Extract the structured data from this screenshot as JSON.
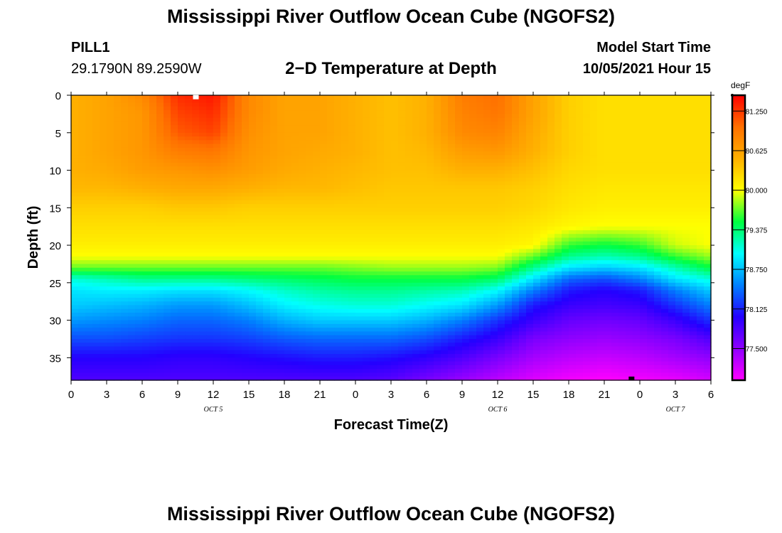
{
  "header": {
    "title": "Mississippi River Outflow Ocean Cube (NGOFS2)",
    "station": "PILL1",
    "coordinates": "29.1790N  89.2590W",
    "plot_title": "2−D Temperature at Depth",
    "model_start_label": "Model Start Time",
    "model_start_value": "10/05/2021 Hour 15"
  },
  "footer": {
    "title": "Mississippi River Outflow Ocean Cube (NGOFS2)"
  },
  "colorbar": {
    "units": "degF",
    "ticks": [
      "81.250",
      "80.625",
      "80.000",
      "79.375",
      "78.750",
      "78.125",
      "77.500"
    ],
    "tick_values": [
      81.25,
      80.625,
      80.0,
      79.375,
      78.75,
      78.125,
      77.5
    ],
    "range": [
      77.0,
      81.5
    ],
    "colors": [
      "#ff00ff",
      "#8f00ff",
      "#2400ff",
      "#0080ff",
      "#00ffff",
      "#00ff40",
      "#ffff00",
      "#ffb000",
      "#ff7000",
      "#ff0000"
    ]
  },
  "chart_data": {
    "type": "heatmap",
    "title": "2−D Temperature at Depth",
    "xlabel": "Forecast Time(Z)",
    "ylabel": "Depth (ft)",
    "x_ticks": [
      "0",
      "3",
      "6",
      "9",
      "12",
      "15",
      "18",
      "21",
      "0",
      "3",
      "6",
      "9",
      "12",
      "15",
      "18",
      "21",
      "0",
      "3",
      "6"
    ],
    "x_range_hours": [
      0,
      54
    ],
    "date_labels": [
      {
        "label": "OCT 5",
        "hour": 12
      },
      {
        "label": "OCT 6",
        "hour": 36
      },
      {
        "label": "OCT 7",
        "hour": 51
      }
    ],
    "y_ticks": [
      "0",
      "5",
      "10",
      "15",
      "20",
      "25",
      "30",
      "35"
    ],
    "y_tick_values": [
      0,
      5,
      10,
      15,
      20,
      25,
      30,
      35
    ],
    "y_range_ft": [
      0,
      38
    ],
    "grid_hours": [
      0,
      3,
      6,
      9,
      12,
      15,
      18,
      21,
      24,
      27,
      30,
      33,
      36,
      39,
      42,
      45,
      48,
      51,
      54
    ],
    "grid_depths": [
      0,
      2.5,
      5,
      7.5,
      10,
      12.5,
      15,
      17.5,
      20,
      21.5,
      23,
      24.5,
      26,
      28,
      30,
      32.5,
      35,
      38
    ],
    "temperature_degF": [
      [
        80.5,
        80.6,
        80.8,
        81.3,
        81.4,
        80.8,
        80.6,
        80.6,
        80.5,
        80.4,
        80.5,
        80.9,
        81.0,
        80.6,
        80.3,
        80.2,
        80.2,
        80.2,
        80.2
      ],
      [
        80.5,
        80.6,
        80.7,
        81.2,
        81.3,
        80.8,
        80.6,
        80.6,
        80.5,
        80.4,
        80.5,
        80.85,
        80.95,
        80.6,
        80.3,
        80.2,
        80.2,
        80.2,
        80.2
      ],
      [
        80.5,
        80.6,
        80.7,
        81.1,
        81.2,
        80.75,
        80.6,
        80.6,
        80.5,
        80.4,
        80.5,
        80.8,
        80.85,
        80.55,
        80.3,
        80.2,
        80.2,
        80.2,
        80.2
      ],
      [
        80.5,
        80.6,
        80.7,
        80.9,
        80.95,
        80.7,
        80.6,
        80.55,
        80.5,
        80.4,
        80.45,
        80.65,
        80.7,
        80.5,
        80.3,
        80.2,
        80.2,
        80.2,
        80.2
      ],
      [
        80.5,
        80.55,
        80.65,
        80.7,
        80.75,
        80.65,
        80.55,
        80.5,
        80.45,
        80.4,
        80.4,
        80.5,
        80.5,
        80.4,
        80.25,
        80.2,
        80.2,
        80.2,
        80.2
      ],
      [
        80.45,
        80.45,
        80.5,
        80.55,
        80.55,
        80.5,
        80.45,
        80.45,
        80.4,
        80.35,
        80.35,
        80.35,
        80.35,
        80.3,
        80.2,
        80.15,
        80.15,
        80.15,
        80.15
      ],
      [
        80.3,
        80.3,
        80.3,
        80.35,
        80.35,
        80.3,
        80.3,
        80.3,
        80.3,
        80.3,
        80.3,
        80.3,
        80.3,
        80.25,
        80.15,
        80.1,
        80.1,
        80.1,
        80.1
      ],
      [
        80.2,
        80.2,
        80.2,
        80.2,
        80.2,
        80.2,
        80.2,
        80.2,
        80.2,
        80.2,
        80.2,
        80.2,
        80.2,
        80.15,
        80.05,
        80.0,
        80.0,
        80.0,
        80.0
      ],
      [
        80.1,
        80.1,
        80.1,
        80.1,
        80.1,
        80.1,
        80.1,
        80.1,
        80.1,
        80.1,
        80.1,
        80.1,
        80.1,
        80.05,
        79.6,
        79.5,
        79.6,
        79.9,
        80.0
      ],
      [
        80.0,
        80.0,
        80.0,
        80.0,
        80.0,
        80.0,
        80.0,
        80.0,
        80.0,
        80.0,
        80.0,
        80.0,
        80.0,
        79.7,
        79.3,
        79.2,
        79.3,
        79.6,
        79.8
      ],
      [
        79.7,
        79.7,
        79.7,
        79.7,
        79.7,
        79.7,
        79.7,
        79.7,
        79.75,
        79.8,
        79.8,
        79.8,
        79.75,
        79.3,
        78.9,
        78.8,
        78.9,
        79.2,
        79.5
      ],
      [
        79.1,
        79.2,
        79.3,
        79.3,
        79.3,
        79.35,
        79.4,
        79.45,
        79.5,
        79.5,
        79.5,
        79.5,
        79.4,
        78.9,
        78.4,
        78.3,
        78.5,
        78.9,
        79.1
      ],
      [
        78.9,
        78.95,
        78.95,
        78.9,
        78.9,
        79.0,
        79.15,
        79.25,
        79.3,
        79.3,
        79.25,
        79.2,
        79.0,
        78.5,
        78.1,
        78.0,
        78.1,
        78.5,
        78.8
      ],
      [
        78.8,
        78.75,
        78.7,
        78.6,
        78.6,
        78.75,
        78.95,
        79.05,
        79.1,
        79.1,
        79.0,
        78.9,
        78.6,
        78.1,
        77.9,
        77.85,
        77.9,
        78.2,
        78.5
      ],
      [
        78.6,
        78.55,
        78.5,
        78.4,
        78.4,
        78.5,
        78.7,
        78.8,
        78.8,
        78.8,
        78.7,
        78.5,
        78.2,
        77.9,
        77.7,
        77.65,
        77.7,
        77.9,
        78.2
      ],
      [
        78.3,
        78.3,
        78.25,
        78.2,
        78.2,
        78.25,
        78.35,
        78.4,
        78.4,
        78.4,
        78.3,
        78.1,
        77.9,
        77.6,
        77.5,
        77.45,
        77.5,
        77.6,
        77.8
      ],
      [
        78.0,
        78.0,
        78.0,
        77.95,
        77.95,
        78.0,
        78.05,
        78.1,
        78.1,
        78.05,
        77.95,
        77.8,
        77.6,
        77.4,
        77.3,
        77.25,
        77.3,
        77.4,
        77.5
      ],
      [
        77.8,
        77.8,
        77.8,
        77.8,
        77.8,
        77.8,
        77.8,
        77.8,
        77.8,
        77.75,
        77.6,
        77.45,
        77.3,
        77.15,
        77.05,
        77.0,
        77.05,
        77.1,
        77.2
      ]
    ],
    "max_marker": {
      "hour": 10.5,
      "depth": 0.3
    },
    "min_marker": {
      "hour": 47.3,
      "depth": 37.8
    }
  }
}
